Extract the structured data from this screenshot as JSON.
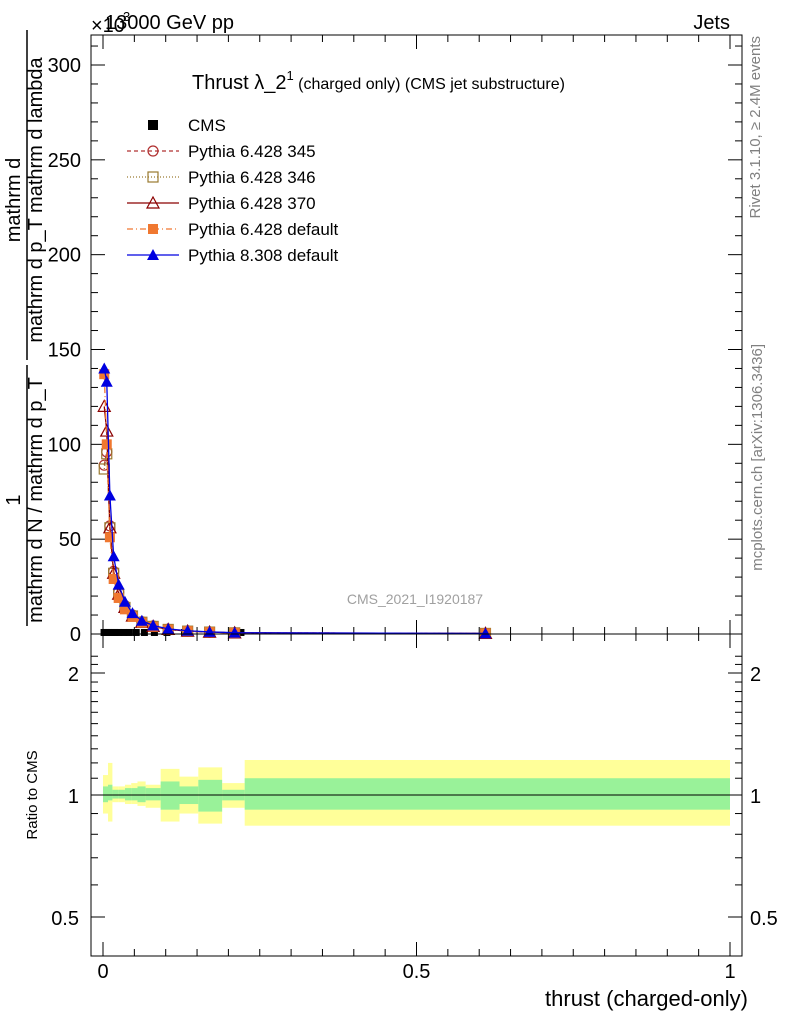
{
  "header": {
    "left": "13000 GeV pp",
    "right": "Jets",
    "exponent_prefix": "×10",
    "exponent": "3"
  },
  "side_labels": {
    "rivet": "Rivet 3.1.10, ≥ 2.4M events",
    "mcplots": "mcplots.cern.ch [arXiv:1306.3436]"
  },
  "watermark": "CMS_2021_I1920187",
  "chart_data": [
    {
      "type": "line",
      "title_main": "Thrust λ_2",
      "title_sup": "1",
      "title_rest": " (charged only) (CMS jet substructure)",
      "ylabel_top_num": "1",
      "ylabel_top_den": "mathrm d N / mathrm d p_T",
      "ylabel_bottom_num": "mathrm d",
      "ylabel_bottom_den": "mathrm d p_T mathrm d lambda",
      "ylim": [
        0,
        315
      ],
      "yticks": [
        0,
        50,
        100,
        150,
        200,
        250,
        300
      ],
      "ytick_labels": [
        "0",
        "50",
        "100",
        "150",
        "200",
        "250",
        "300"
      ],
      "xlim": [
        -0.02,
        1.02
      ],
      "legend_position": "top-left",
      "series": [
        {
          "name": "CMS",
          "color": "#000000",
          "marker": "square",
          "x": [
            0.0017,
            0.005,
            0.009,
            0.0135,
            0.019,
            0.025,
            0.033,
            0.042,
            0.053,
            0.066,
            0.082,
            0.102,
            0.13,
            0.168,
            0.22,
            0.61
          ],
          "y": [
            0.8,
            0.8,
            0.8,
            0.8,
            0.8,
            0.8,
            0.8,
            0.8,
            0.8,
            0.8,
            0.8,
            0.8,
            0.8,
            0.8,
            0.8,
            0.5
          ]
        },
        {
          "name": "Pythia 6.428 345",
          "color": "#b03030",
          "marker": "circle-open",
          "dash": "4,3",
          "x": [
            0.002,
            0.006,
            0.011,
            0.017,
            0.025,
            0.035,
            0.047,
            0.062,
            0.08,
            0.104,
            0.135,
            0.17,
            0.21,
            0.61
          ],
          "y": [
            89,
            96,
            57,
            33,
            22,
            15,
            10,
            6.5,
            4.2,
            2.5,
            1.6,
            1.0,
            0.6,
            0.3
          ]
        },
        {
          "name": "Pythia 6.428 346",
          "color": "#9a7a30",
          "marker": "square-open",
          "dash": "1,2",
          "x": [
            0.002,
            0.006,
            0.011,
            0.017,
            0.025,
            0.035,
            0.047,
            0.062,
            0.08,
            0.104,
            0.135,
            0.17,
            0.21,
            0.61
          ],
          "y": [
            87,
            95,
            56,
            32,
            21,
            14,
            9.5,
            6.2,
            4.0,
            2.4,
            1.5,
            1.0,
            0.6,
            0.3
          ]
        },
        {
          "name": "Pythia 6.428 370",
          "color": "#8b0000",
          "marker": "triangle-open",
          "dash": "",
          "x": [
            0.002,
            0.006,
            0.011,
            0.017,
            0.025,
            0.035,
            0.047,
            0.062,
            0.08,
            0.104,
            0.135,
            0.17,
            0.21,
            0.61
          ],
          "y": [
            120,
            107,
            56,
            32,
            21,
            14,
            9.5,
            6.2,
            4.0,
            2.4,
            1.5,
            1.0,
            0.6,
            0.3
          ]
        },
        {
          "name": "Pythia 6.428 default",
          "color": "#f07830",
          "marker": "square-filled",
          "dash": "6,3,1,3",
          "x": [
            0.002,
            0.006,
            0.011,
            0.017,
            0.025,
            0.035,
            0.047,
            0.062,
            0.08,
            0.104,
            0.135,
            0.17,
            0.21,
            0.61
          ],
          "y": [
            137,
            100,
            51,
            29,
            19,
            13,
            9,
            6,
            3.8,
            2.3,
            1.5,
            1.0,
            0.6,
            0.3
          ]
        },
        {
          "name": "Pythia 8.308 default",
          "color": "#0000e0",
          "marker": "triangle-filled",
          "dash": "",
          "x": [
            0.002,
            0.006,
            0.011,
            0.017,
            0.025,
            0.035,
            0.047,
            0.062,
            0.08,
            0.104,
            0.135,
            0.17,
            0.21,
            0.61
          ],
          "y": [
            140,
            133,
            73,
            41,
            26,
            17,
            11,
            7,
            4.5,
            2.7,
            1.7,
            1.1,
            0.7,
            0.3
          ]
        }
      ]
    },
    {
      "type": "area",
      "ylabel": "Ratio to CMS",
      "xlabel": "thrust (charged-only)",
      "ylim": [
        0.4,
        2.3
      ],
      "log_scale_y": true,
      "yticks": [
        0.5,
        1,
        2
      ],
      "ytick_labels": [
        "0.5",
        "1",
        "2"
      ],
      "xlim": [
        -0.02,
        1.02
      ],
      "xticks": [
        0,
        0.5,
        1
      ],
      "xtick_labels": [
        "0",
        "0.5",
        "1"
      ],
      "reference_line": 1,
      "bins": [
        {
          "x0": 0.0,
          "x1": 0.008,
          "stat": [
            0.96,
            1.05
          ],
          "total": [
            0.9,
            1.12
          ]
        },
        {
          "x0": 0.008,
          "x1": 0.015,
          "stat": [
            0.97,
            1.06
          ],
          "total": [
            0.86,
            1.2
          ]
        },
        {
          "x0": 0.015,
          "x1": 0.025,
          "stat": [
            0.98,
            1.03
          ],
          "total": [
            0.96,
            1.05
          ]
        },
        {
          "x0": 0.025,
          "x1": 0.035,
          "stat": [
            0.98,
            1.03
          ],
          "total": [
            0.96,
            1.05
          ]
        },
        {
          "x0": 0.035,
          "x1": 0.045,
          "stat": [
            0.97,
            1.04
          ],
          "total": [
            0.95,
            1.06
          ]
        },
        {
          "x0": 0.045,
          "x1": 0.055,
          "stat": [
            0.97,
            1.04
          ],
          "total": [
            0.95,
            1.07
          ]
        },
        {
          "x0": 0.055,
          "x1": 0.068,
          "stat": [
            0.96,
            1.05
          ],
          "total": [
            0.94,
            1.08
          ]
        },
        {
          "x0": 0.068,
          "x1": 0.092,
          "stat": [
            0.97,
            1.04
          ],
          "total": [
            0.93,
            1.06
          ]
        },
        {
          "x0": 0.092,
          "x1": 0.122,
          "stat": [
            0.92,
            1.08
          ],
          "total": [
            0.86,
            1.16
          ]
        },
        {
          "x0": 0.122,
          "x1": 0.152,
          "stat": [
            0.95,
            1.05
          ],
          "total": [
            0.9,
            1.11
          ]
        },
        {
          "x0": 0.152,
          "x1": 0.19,
          "stat": [
            0.91,
            1.09
          ],
          "total": [
            0.85,
            1.17
          ]
        },
        {
          "x0": 0.19,
          "x1": 0.226,
          "stat": [
            0.97,
            1.03
          ],
          "total": [
            0.93,
            1.07
          ]
        },
        {
          "x0": 0.226,
          "x1": 1.0,
          "stat": [
            0.92,
            1.1
          ],
          "total": [
            0.84,
            1.22
          ]
        }
      ],
      "series": [
        {
          "name": "Pythia 6.428 345",
          "color": "#b03030",
          "x": [
            0.002,
            0.006,
            0.011,
            0.017,
            0.025,
            0.035,
            0.047,
            0.062,
            0.08,
            0.104,
            0.135,
            0.17,
            0.21,
            0.61
          ],
          "y": [
            1.0,
            1.0,
            1.0,
            1.0,
            1.0,
            1.0,
            1.0,
            1.0,
            1.0,
            1.0,
            1.0,
            1.0,
            1.0,
            1.0
          ]
        }
      ]
    }
  ]
}
